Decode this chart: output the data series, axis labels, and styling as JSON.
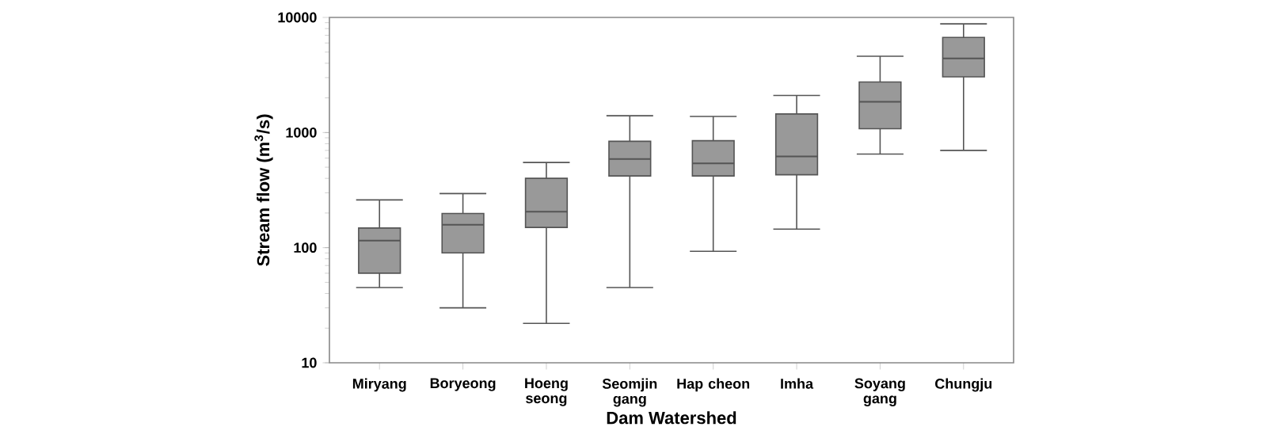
{
  "chart_data": {
    "type": "box",
    "xlabel": "Dam Watershed",
    "ylabel": "Stream flow (m$^{3}$/s)",
    "categories": [
      "Miryang",
      "Boryeong",
      "Hoeng seong",
      "Seomjin gang",
      "Hap cheon",
      "Imha",
      "Soyang gang",
      "Chungju"
    ],
    "boxes": [
      {
        "low": 45,
        "q1": 60,
        "median": 115,
        "q3": 148,
        "high": 260
      },
      {
        "low": 30,
        "q1": 90,
        "median": 158,
        "q3": 198,
        "high": 295
      },
      {
        "low": 22,
        "q1": 150,
        "median": 205,
        "q3": 400,
        "high": 550
      },
      {
        "low": 45,
        "q1": 420,
        "median": 590,
        "q3": 840,
        "high": 1400
      },
      {
        "low": 93,
        "q1": 420,
        "median": 540,
        "q3": 850,
        "high": 1380
      },
      {
        "low": 145,
        "q1": 430,
        "median": 620,
        "q3": 1450,
        "high": 2100
      },
      {
        "low": 650,
        "q1": 1080,
        "median": 1850,
        "q3": 2750,
        "high": 4600
      },
      {
        "low": 700,
        "q1": 3050,
        "median": 4400,
        "q3": 6700,
        "high": 8800
      }
    ],
    "color": "#999999",
    "log": true,
    "ylim": [
      10,
      10000
    ],
    "yticks": [
      10,
      100,
      1000,
      10000
    ],
    "grid": false
  }
}
